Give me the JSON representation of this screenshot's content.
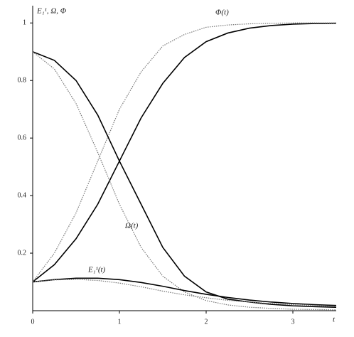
{
  "chart_data": {
    "type": "line",
    "y_label": "E₁¹, Ω, Φ",
    "x_label": "t",
    "annotations": [
      "Φ(t)",
      "Ω(t)",
      "E₁¹(t)"
    ],
    "x": [
      0,
      0.25,
      0.5,
      0.75,
      1,
      1.25,
      1.5,
      1.75,
      2,
      2.25,
      2.5,
      2.75,
      3,
      3.25,
      3.5
    ],
    "series": [
      {
        "color": "#000000",
        "style": "solid",
        "values": [
          0.1,
          0.16,
          0.25,
          0.37,
          0.52,
          0.67,
          0.79,
          0.88,
          0.935,
          0.965,
          0.982,
          0.991,
          0.996,
          0.998,
          0.999
        ]
      },
      {
        "color": "#777777",
        "style": "dotted",
        "values": [
          0.1,
          0.2,
          0.34,
          0.52,
          0.7,
          0.83,
          0.92,
          0.96,
          0.985,
          0.993,
          0.997,
          0.999,
          1,
          1,
          1
        ]
      },
      {
        "color": "#000000",
        "style": "solid",
        "values": [
          0.9,
          0.87,
          0.8,
          0.68,
          0.52,
          0.37,
          0.22,
          0.12,
          0.065,
          0.04,
          0.03,
          0.022,
          0.017,
          0.014,
          0.012
        ]
      },
      {
        "color": "#777777",
        "style": "dotted",
        "values": [
          0.9,
          0.84,
          0.72,
          0.55,
          0.37,
          0.22,
          0.12,
          0.065,
          0.035,
          0.02,
          0.012,
          0.008,
          0.005,
          0.004,
          0.003
        ]
      },
      {
        "color": "#000000",
        "style": "solid",
        "values": [
          0.1,
          0.108,
          0.113,
          0.113,
          0.108,
          0.098,
          0.085,
          0.07,
          0.057,
          0.046,
          0.037,
          0.03,
          0.025,
          0.021,
          0.018
        ]
      },
      {
        "color": "#777777",
        "style": "dotted",
        "values": [
          0.1,
          0.107,
          0.109,
          0.105,
          0.096,
          0.083,
          0.068,
          0.055,
          0.045,
          0.036,
          0.03,
          0.025,
          0.021,
          0.018,
          0.015
        ]
      }
    ],
    "xlim": [
      0,
      3.5
    ],
    "ylim": [
      0,
      1.06
    ],
    "xticks": [
      0,
      1,
      2,
      3
    ],
    "yticks": [
      0.2,
      0.4,
      0.6,
      0.8,
      1
    ],
    "grid": false
  }
}
